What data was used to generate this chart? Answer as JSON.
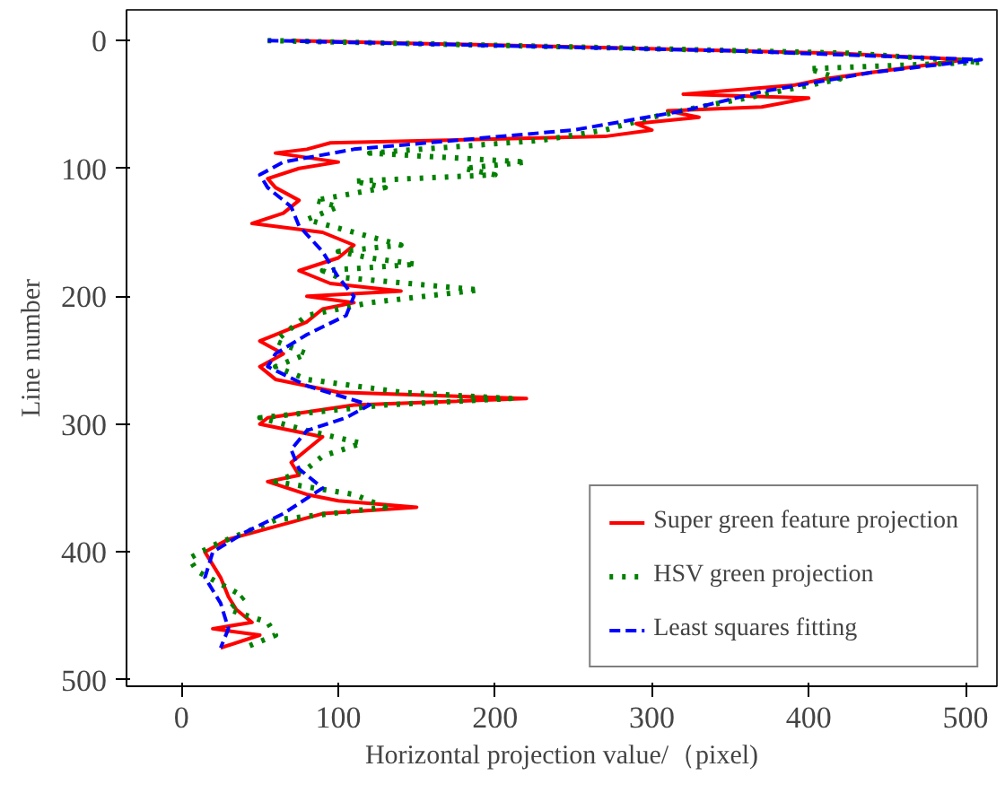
{
  "chart_data": {
    "type": "line",
    "xlabel": "Horizontal projection value/（pixel)",
    "ylabel": "Line number",
    "xlim": [
      -35,
      520
    ],
    "ylim": [
      505,
      -24
    ],
    "xticks": [
      0,
      100,
      200,
      300,
      400,
      500
    ],
    "yticks": [
      0,
      100,
      200,
      300,
      400,
      500
    ],
    "grid": false,
    "legend": "bottom right",
    "series": [
      {
        "name": "Super green feature projection",
        "color": "#ff0000",
        "line_style": "solid",
        "x": [
          70,
          250,
          420,
          500,
          470,
          440,
          410,
          390,
          320,
          400,
          370,
          310,
          330,
          290,
          300,
          270,
          95,
          80,
          60,
          100,
          75,
          55,
          60,
          75,
          65,
          45,
          90,
          110,
          100,
          75,
          95,
          140,
          80,
          110,
          90,
          80,
          60,
          50,
          65,
          50,
          60,
          100,
          220,
          110,
          55,
          50,
          90,
          80,
          70,
          75,
          55,
          80,
          100,
          150,
          90,
          60,
          30,
          15,
          20,
          25,
          30,
          35,
          45,
          20,
          50,
          25
        ],
        "values": [
          0,
          5,
          10,
          15,
          20,
          25,
          30,
          35,
          42,
          45,
          52,
          55,
          60,
          65,
          70,
          75,
          80,
          85,
          88,
          95,
          100,
          108,
          115,
          125,
          135,
          143,
          150,
          160,
          170,
          180,
          190,
          196,
          200,
          205,
          210,
          220,
          230,
          235,
          245,
          255,
          265,
          275,
          280,
          285,
          295,
          300,
          310,
          320,
          330,
          340,
          345,
          355,
          360,
          365,
          370,
          380,
          390,
          400,
          410,
          420,
          435,
          445,
          455,
          460,
          465,
          475
        ]
      },
      {
        "name": "HSV green projection",
        "color": "#008000",
        "line_style": "dotted",
        "x": [
          55,
          250,
          430,
          510,
          400,
          420,
          380,
          360,
          330,
          300,
          270,
          230,
          120,
          220,
          180,
          200,
          110,
          130,
          85,
          100,
          80,
          110,
          140,
          100,
          120,
          150,
          90,
          100,
          190,
          120,
          80,
          70,
          60,
          80,
          60,
          80,
          140,
          210,
          130,
          50,
          80,
          115,
          90,
          80,
          60,
          110,
          130,
          60,
          40,
          20,
          5,
          10,
          25,
          40,
          30,
          55,
          60,
          40
        ],
        "values": [
          0,
          5,
          10,
          17,
          22,
          30,
          40,
          45,
          52,
          60,
          70,
          78,
          88,
          95,
          100,
          105,
          110,
          115,
          125,
          130,
          140,
          150,
          160,
          165,
          170,
          175,
          180,
          185,
          195,
          205,
          215,
          225,
          235,
          245,
          255,
          265,
          275,
          280,
          285,
          295,
          305,
          315,
          325,
          335,
          345,
          355,
          365,
          375,
          385,
          395,
          405,
          415,
          425,
          435,
          445,
          455,
          465,
          475
        ]
      },
      {
        "name": "Least squares fitting",
        "color": "#0000ff",
        "line_style": "dashed",
        "x": [
          55,
          350,
          510,
          440,
          370,
          320,
          250,
          110,
          65,
          50,
          55,
          70,
          75,
          90,
          100,
          110,
          105,
          80,
          60,
          55,
          80,
          120,
          105,
          80,
          70,
          75,
          90,
          65,
          40,
          20,
          15,
          25,
          30,
          25
        ],
        "values": [
          0,
          8,
          15,
          25,
          40,
          55,
          70,
          85,
          95,
          105,
          115,
          130,
          145,
          165,
          185,
          200,
          215,
          230,
          245,
          255,
          270,
          285,
          295,
          305,
          320,
          335,
          350,
          370,
          385,
          400,
          420,
          440,
          460,
          475
        ]
      }
    ]
  }
}
